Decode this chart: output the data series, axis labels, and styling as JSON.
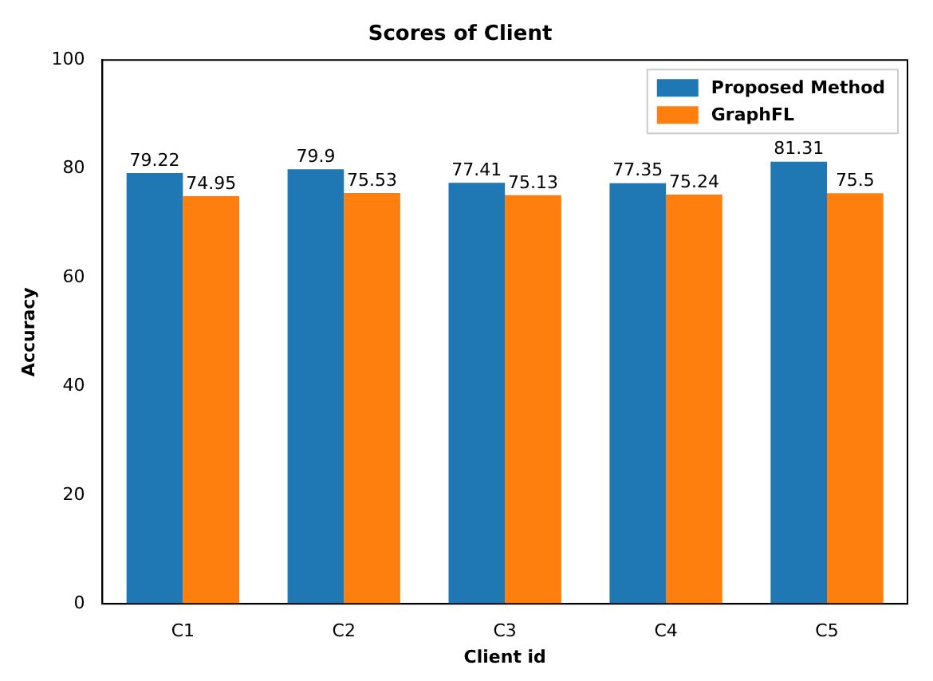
{
  "chart_data": {
    "type": "bar",
    "title": "Scores of Client",
    "xlabel": "Client id",
    "ylabel": "Accuracy",
    "categories": [
      "C1",
      "C2",
      "C3",
      "C4",
      "C5"
    ],
    "series": [
      {
        "name": "Proposed Method",
        "color": "#1f77b4",
        "values": [
          79.22,
          79.9,
          77.41,
          77.35,
          81.31
        ]
      },
      {
        "name": "GraphFL",
        "color": "#ff7f0e",
        "values": [
          74.95,
          75.53,
          75.13,
          75.24,
          75.5
        ]
      }
    ],
    "ylim": [
      0,
      100
    ],
    "yticks": [
      0,
      20,
      40,
      60,
      80,
      100
    ],
    "grid": false,
    "legend": "top right",
    "data_labels": true
  }
}
